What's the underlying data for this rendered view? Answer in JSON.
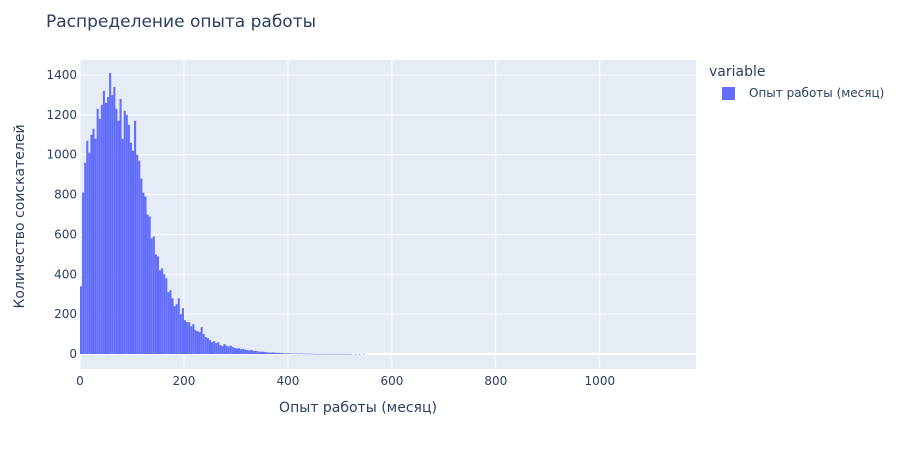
{
  "colors": {
    "series": "#636efa",
    "plot_bg": "#e5ecf6",
    "grid": "#ffffff",
    "text": "#2a3f5f"
  },
  "legend": {
    "title": "variable",
    "items": [
      "Опыт работы (месяц)"
    ]
  },
  "chart_data": {
    "type": "bar",
    "title": "Распределение опыта работы",
    "xlabel": "Опыт работы (месяц)",
    "ylabel": "Количество соискателей",
    "xlim": [
      0,
      1185
    ],
    "ylim": [
      -75,
      1475
    ],
    "x_ticks": [
      0,
      200,
      400,
      600,
      800,
      1000
    ],
    "y_ticks": [
      0,
      200,
      400,
      600,
      800,
      1000,
      1200,
      1400
    ],
    "grid": true,
    "legend_position": "top-right",
    "bin_width": 4,
    "series": [
      {
        "name": "Опыт работы (месяц)",
        "bin_starts": [
          0,
          4,
          8,
          12,
          16,
          20,
          24,
          28,
          32,
          36,
          40,
          44,
          48,
          52,
          56,
          60,
          64,
          68,
          72,
          76,
          80,
          84,
          88,
          92,
          96,
          100,
          104,
          108,
          112,
          116,
          120,
          124,
          128,
          132,
          136,
          140,
          144,
          148,
          152,
          156,
          160,
          164,
          168,
          172,
          176,
          180,
          184,
          188,
          192,
          196,
          200,
          204,
          208,
          212,
          216,
          220,
          224,
          228,
          232,
          236,
          240,
          244,
          248,
          252,
          256,
          260,
          264,
          268,
          272,
          276,
          280,
          284,
          288,
          292,
          296,
          300,
          304,
          308,
          312,
          316,
          320,
          324,
          328,
          332,
          336,
          340,
          344,
          348,
          352,
          356,
          360,
          364,
          368,
          372,
          376,
          380,
          384,
          388,
          392,
          396,
          400,
          404,
          408,
          412,
          416,
          420,
          424,
          428,
          432,
          436,
          440,
          444,
          448,
          452,
          456,
          460,
          464,
          468,
          472,
          476,
          480,
          484,
          488,
          492,
          496,
          500,
          504,
          508,
          512,
          516,
          520,
          524,
          528,
          532,
          536,
          540,
          544,
          548,
          552,
          556,
          560,
          564,
          568,
          572,
          576,
          580,
          584,
          588,
          592,
          596,
          600,
          604,
          608,
          612,
          616,
          620,
          624,
          628,
          632,
          636,
          640,
          644,
          648,
          652,
          656,
          660,
          664,
          668,
          672,
          676,
          680,
          684,
          688,
          692,
          696,
          700,
          704,
          708,
          712,
          716,
          720,
          724,
          728,
          732,
          736,
          740,
          744,
          748,
          752,
          756,
          760,
          764,
          768,
          772,
          776,
          780,
          784,
          788,
          792,
          796,
          800,
          804,
          808,
          812,
          816,
          820,
          824,
          828,
          832,
          836,
          840,
          844,
          848,
          852,
          856,
          860,
          864,
          868,
          872,
          876,
          880,
          884,
          888,
          892,
          896,
          900,
          904,
          908,
          912,
          916,
          920,
          924,
          928,
          932,
          936,
          940,
          944,
          948,
          952,
          956,
          960,
          964,
          968,
          972,
          976,
          980,
          984,
          988,
          992,
          996,
          1000,
          1004,
          1008,
          1012,
          1016,
          1020,
          1024,
          1028,
          1032,
          1036,
          1040,
          1044,
          1048,
          1052,
          1056,
          1060,
          1064,
          1068,
          1072,
          1076,
          1080,
          1084,
          1088,
          1092,
          1096,
          1100,
          1104,
          1108,
          1112,
          1116,
          1120,
          1124,
          1128,
          1132,
          1136,
          1140,
          1144,
          1148,
          1152,
          1156,
          1160,
          1164,
          1168,
          1172,
          1176,
          1180
        ],
        "values": [
          340,
          810,
          960,
          1070,
          1010,
          1100,
          1130,
          1080,
          1230,
          1180,
          1250,
          1320,
          1260,
          1290,
          1410,
          1300,
          1340,
          1230,
          1170,
          1280,
          1080,
          1220,
          1200,
          1150,
          1060,
          1020,
          1170,
          1000,
          970,
          880,
          810,
          790,
          700,
          690,
          580,
          590,
          500,
          490,
          420,
          430,
          400,
          380,
          310,
          320,
          280,
          240,
          250,
          280,
          200,
          230,
          170,
          160,
          160,
          140,
          150,
          120,
          115,
          110,
          135,
          100,
          85,
          80,
          70,
          60,
          65,
          55,
          60,
          45,
          40,
          50,
          42,
          38,
          42,
          35,
          30,
          28,
          29,
          24,
          26,
          22,
          20,
          18,
          20,
          16,
          16,
          14,
          12,
          12,
          11,
          9,
          8,
          7,
          8,
          7,
          6,
          6,
          5,
          5,
          4,
          4,
          4,
          3,
          3,
          3,
          3,
          2,
          3,
          2,
          2,
          2,
          2,
          2,
          1,
          1,
          1,
          1,
          1,
          1,
          1,
          1,
          1,
          1,
          1,
          1,
          1,
          1,
          1,
          1,
          1,
          1,
          1,
          0,
          1,
          0,
          1,
          0,
          1,
          0,
          0,
          0,
          0,
          0,
          0,
          0,
          0,
          0,
          0,
          0,
          0,
          0,
          0,
          0,
          0,
          0,
          0,
          0,
          0,
          0,
          0,
          0,
          0,
          0,
          0,
          0,
          0,
          0,
          0,
          0,
          0,
          0,
          0,
          0,
          0,
          0,
          0,
          0,
          0,
          0,
          0,
          0,
          0,
          0,
          0,
          0,
          0,
          0,
          0,
          0,
          0,
          0,
          0,
          0,
          0,
          0,
          0,
          0,
          0,
          0,
          0,
          0,
          0,
          0,
          0,
          0,
          0,
          0,
          0,
          0,
          0,
          0,
          0,
          0,
          0,
          0,
          0,
          0,
          0,
          0,
          0,
          0,
          0,
          0,
          0,
          0,
          0,
          0,
          0,
          0,
          0,
          0,
          0,
          0,
          0,
          0,
          0,
          0,
          0,
          0,
          0,
          0,
          0,
          0,
          0,
          0,
          0,
          0,
          0,
          0,
          0,
          0,
          0,
          0,
          0,
          0,
          0,
          0,
          0,
          0,
          0,
          0,
          0,
          0,
          0,
          0,
          0,
          0,
          0,
          0,
          0,
          0,
          0,
          0,
          0,
          0,
          0,
          0,
          0,
          0,
          0,
          0,
          0,
          0,
          0,
          0,
          0,
          0,
          0,
          0,
          0,
          0,
          0,
          0,
          0,
          0,
          0,
          0,
          1
        ]
      }
    ]
  }
}
